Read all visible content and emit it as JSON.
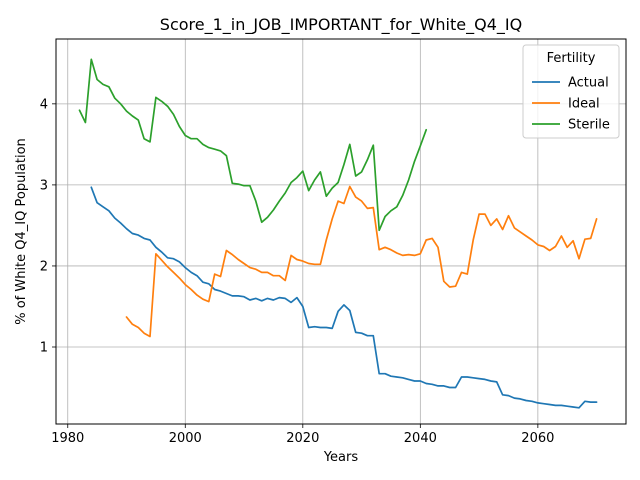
{
  "chart_data": {
    "type": "line",
    "title": "Score_1_in_JOB_IMPORTANT_for_White_Q4_IQ",
    "xlabel": "Years",
    "ylabel": "% of White Q4_IQ Population",
    "xlim": [
      1978,
      2075
    ],
    "ylim": [
      0.05,
      4.8
    ],
    "xticks": [
      1980,
      2000,
      2020,
      2040,
      2060
    ],
    "yticks": [
      1,
      2,
      3,
      4
    ],
    "grid": true,
    "legend": {
      "title": "Fertility",
      "placement": "top-right"
    },
    "series": [
      {
        "name": "Actual",
        "color": "#1f77b4",
        "x": [
          1984,
          1985,
          1986,
          1987,
          1988,
          1989,
          1990,
          1991,
          1992,
          1993,
          1994,
          1995,
          1996,
          1997,
          1998,
          1999,
          2000,
          2001,
          2002,
          2003,
          2004,
          2005,
          2006,
          2007,
          2008,
          2009,
          2010,
          2011,
          2012,
          2013,
          2014,
          2015,
          2016,
          2017,
          2018,
          2019,
          2020,
          2021,
          2022,
          2023,
          2024,
          2025,
          2026,
          2027,
          2028,
          2029,
          2030,
          2031,
          2032,
          2033,
          2034,
          2035,
          2036,
          2037,
          2038,
          2039,
          2040,
          2041,
          2042,
          2043,
          2044,
          2045,
          2046,
          2047,
          2048,
          2049,
          2050,
          2051,
          2052,
          2053,
          2054,
          2055,
          2056,
          2057,
          2058,
          2059,
          2060,
          2061,
          2062,
          2063,
          2064,
          2065,
          2066,
          2067,
          2068,
          2069,
          2070
        ],
        "values": [
          2.97,
          2.78,
          2.73,
          2.68,
          2.59,
          2.53,
          2.46,
          2.4,
          2.38,
          2.34,
          2.32,
          2.23,
          2.17,
          2.1,
          2.09,
          2.05,
          1.98,
          1.92,
          1.88,
          1.8,
          1.78,
          1.71,
          1.69,
          1.66,
          1.63,
          1.63,
          1.62,
          1.58,
          1.6,
          1.57,
          1.6,
          1.58,
          1.61,
          1.6,
          1.55,
          1.61,
          1.5,
          1.24,
          1.25,
          1.24,
          1.24,
          1.23,
          1.44,
          1.52,
          1.45,
          1.18,
          1.17,
          1.14,
          1.14,
          0.67,
          0.67,
          0.64,
          0.63,
          0.62,
          0.6,
          0.58,
          0.58,
          0.55,
          0.54,
          0.52,
          0.52,
          0.5,
          0.5,
          0.63,
          0.63,
          0.62,
          0.61,
          0.6,
          0.58,
          0.57,
          0.41,
          0.4,
          0.37,
          0.36,
          0.34,
          0.33,
          0.31,
          0.3,
          0.29,
          0.28,
          0.28,
          0.27,
          0.26,
          0.25,
          0.33,
          0.32,
          0.32
        ]
      },
      {
        "name": "Ideal",
        "color": "#ff7f0e",
        "x": [
          1990,
          1991,
          1992,
          1993,
          1994,
          1995,
          1996,
          1997,
          1998,
          1999,
          2000,
          2001,
          2002,
          2003,
          2004,
          2005,
          2006,
          2007,
          2008,
          2009,
          2010,
          2011,
          2012,
          2013,
          2014,
          2015,
          2016,
          2017,
          2018,
          2019,
          2020,
          2021,
          2022,
          2023,
          2024,
          2025,
          2026,
          2027,
          2028,
          2029,
          2030,
          2031,
          2032,
          2033,
          2034,
          2035,
          2036,
          2037,
          2038,
          2039,
          2040,
          2041,
          2042,
          2043,
          2044,
          2045,
          2046,
          2047,
          2048,
          2049,
          2050,
          2051,
          2052,
          2053,
          2054,
          2055,
          2056,
          2057,
          2058,
          2059,
          2060,
          2061,
          2062,
          2063,
          2064,
          2065,
          2066,
          2067,
          2068,
          2069,
          2070
        ],
        "values": [
          1.37,
          1.28,
          1.24,
          1.17,
          1.13,
          2.15,
          2.07,
          1.99,
          1.92,
          1.85,
          1.77,
          1.71,
          1.64,
          1.59,
          1.56,
          1.9,
          1.87,
          2.19,
          2.14,
          2.08,
          2.03,
          1.98,
          1.96,
          1.92,
          1.92,
          1.88,
          1.88,
          1.82,
          2.13,
          2.08,
          2.06,
          2.03,
          2.02,
          2.02,
          2.32,
          2.58,
          2.8,
          2.77,
          2.98,
          2.85,
          2.8,
          2.71,
          2.72,
          2.2,
          2.23,
          2.2,
          2.16,
          2.13,
          2.14,
          2.13,
          2.15,
          2.32,
          2.34,
          2.23,
          1.81,
          1.74,
          1.75,
          1.92,
          1.9,
          2.32,
          2.64,
          2.64,
          2.5,
          2.58,
          2.45,
          2.62,
          2.47,
          2.42,
          2.37,
          2.32,
          2.26,
          2.24,
          2.19,
          2.24,
          2.37,
          2.23,
          2.31,
          2.09,
          2.33,
          2.34,
          2.58
        ]
      },
      {
        "name": "Sterile",
        "color": "#2ca02c",
        "x": [
          1982,
          1983,
          1984,
          1985,
          1986,
          1987,
          1988,
          1989,
          1990,
          1991,
          1992,
          1993,
          1994,
          1995,
          1996,
          1997,
          1998,
          1999,
          2000,
          2001,
          2002,
          2003,
          2004,
          2005,
          2006,
          2007,
          2008,
          2009,
          2010,
          2011,
          2012,
          2013,
          2014,
          2015,
          2016,
          2017,
          2018,
          2019,
          2020,
          2021,
          2022,
          2023,
          2024,
          2025,
          2026,
          2027,
          2028,
          2029,
          2030,
          2031,
          2032,
          2033,
          2034,
          2035,
          2036,
          2037,
          2038,
          2039,
          2040,
          2041,
          2042
        ],
        "values": [
          3.92,
          3.77,
          4.55,
          4.3,
          4.24,
          4.21,
          4.07,
          4.0,
          3.91,
          3.85,
          3.8,
          3.57,
          3.53,
          4.08,
          4.03,
          3.97,
          3.87,
          3.72,
          3.61,
          3.57,
          3.57,
          3.5,
          3.46,
          3.44,
          3.42,
          3.36,
          3.02,
          3.01,
          2.99,
          2.99,
          2.8,
          2.54,
          2.6,
          2.69,
          2.8,
          2.9,
          3.03,
          3.09,
          3.17,
          2.93,
          3.06,
          3.16,
          2.86,
          2.96,
          3.03,
          3.25,
          3.5,
          3.11,
          3.16,
          3.31,
          3.49,
          2.44,
          2.61,
          2.68,
          2.73,
          2.87,
          3.06,
          3.29,
          3.48,
          3.68,
          null
        ]
      }
    ]
  }
}
